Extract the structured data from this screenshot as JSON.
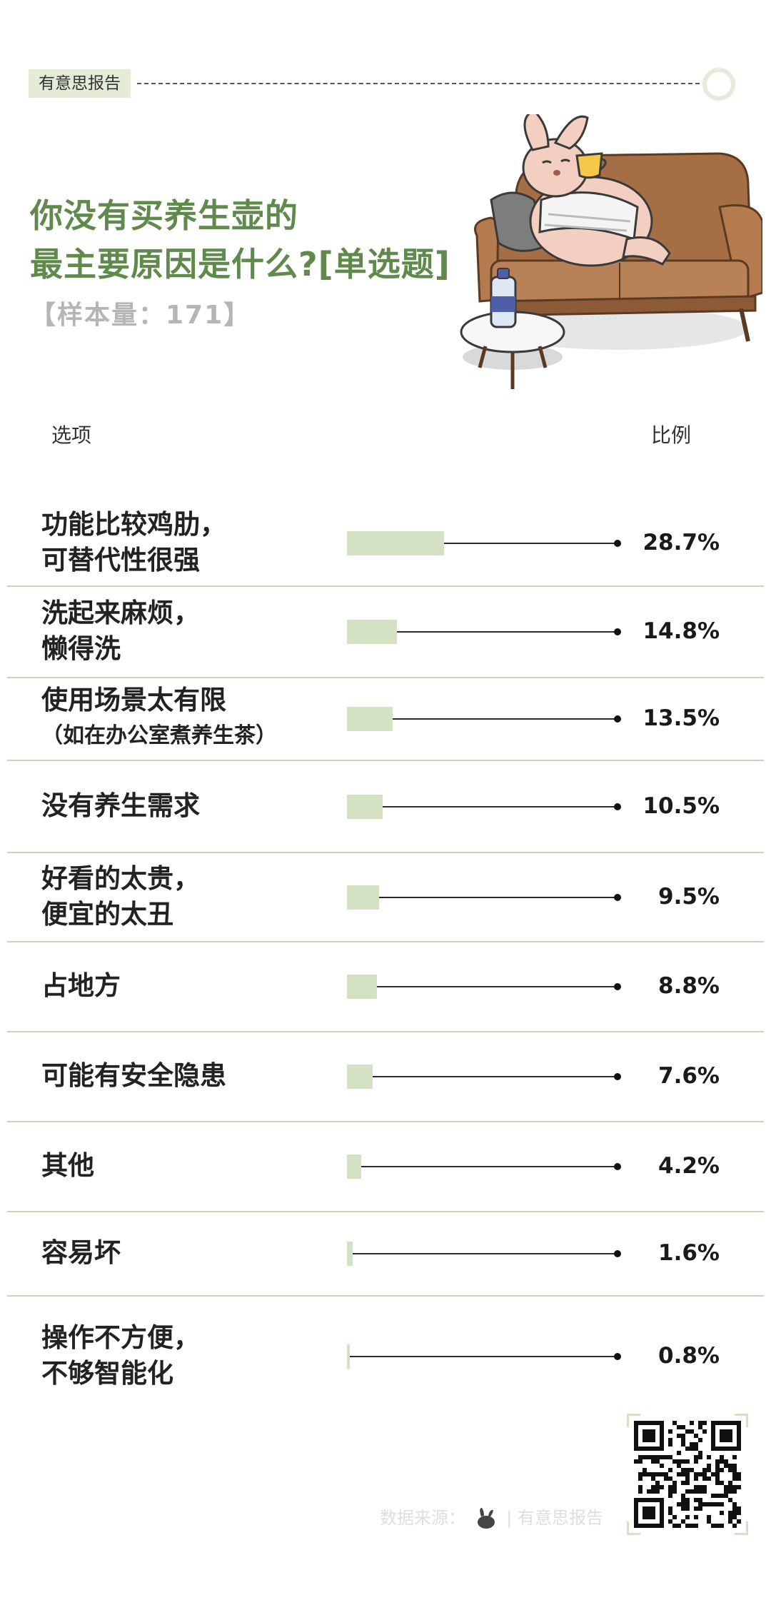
{
  "header": {
    "brand": "有意思报告"
  },
  "title": {
    "line1": "你没有买养生壶的",
    "line2": "最主要原因是什么?[单选题]"
  },
  "sample": "【样本量：171】",
  "columns": {
    "option": "选项",
    "ratio": "比例"
  },
  "rows": [
    {
      "line1": "功能比较鸡肋，",
      "line2": "可替代性很强",
      "pct": "28.7%"
    },
    {
      "line1": "洗起来麻烦，",
      "line2": "懒得洗",
      "pct": "14.8%"
    },
    {
      "line1": "使用场景太有限",
      "line2": "（如在办公室煮养生茶）",
      "pct": "13.5%"
    },
    {
      "line1": "没有养生需求",
      "line2": "",
      "pct": "10.5%"
    },
    {
      "line1": "好看的太贵，",
      "line2": "便宜的太丑",
      "pct": "9.5%"
    },
    {
      "line1": "占地方",
      "line2": "",
      "pct": "8.8%"
    },
    {
      "line1": "可能有安全隐患",
      "line2": "",
      "pct": "7.6%"
    },
    {
      "line1": "其他",
      "line2": "",
      "pct": "4.2%"
    },
    {
      "line1": "容易坏",
      "line2": "",
      "pct": "1.6%"
    },
    {
      "line1": "操作不方便，",
      "line2": "不够智能化",
      "pct": "0.8%"
    }
  ],
  "chart_data": {
    "type": "bar",
    "orientation": "horizontal",
    "title": "你没有买养生壶的最主要原因是什么?[单选题]",
    "categories": [
      "功能比较鸡肋，可替代性很强",
      "洗起来麻烦，懒得洗",
      "使用场景太有限（如在办公室煮养生茶）",
      "没有养生需求",
      "好看的太贵，便宜的太丑",
      "占地方",
      "可能有安全隐患",
      "其他",
      "容易坏",
      "操作不方便，不够智能化"
    ],
    "values": [
      28.7,
      14.8,
      13.5,
      10.5,
      9.5,
      8.8,
      7.6,
      4.2,
      1.6,
      0.8
    ],
    "unit": "%",
    "xlim": [
      0,
      100
    ],
    "bar_color": "#d4e1c3"
  },
  "footer": {
    "source_label": "数据来源：",
    "source_name": "| 有意思报告"
  },
  "colors": {
    "accent": "#5f8a4c",
    "bar": "#d4e1c3",
    "tag_bg": "#e4ecd8"
  }
}
